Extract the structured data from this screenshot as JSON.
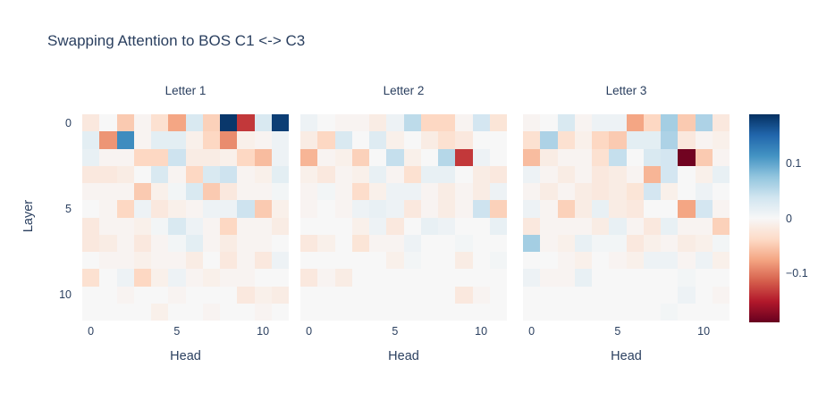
{
  "title": "Swapping Attention to BOS C1 <-> C3",
  "colors": {
    "text": "#2a3f5f",
    "background": "#ffffff",
    "max_positive": "#053061",
    "max_negative": "#67001f",
    "midpoint": "#f7f7f7"
  },
  "chart_data": {
    "type": "heatmap",
    "title": "Swapping Attention to BOS C1 <-> C3",
    "xlabel": "Head",
    "ylabel": "Layer",
    "x": [
      0,
      1,
      2,
      3,
      4,
      5,
      6,
      7,
      8,
      9,
      10,
      11
    ],
    "y": [
      0,
      1,
      2,
      3,
      4,
      5,
      6,
      7,
      8,
      9,
      10,
      11
    ],
    "xticks": [
      0,
      5,
      10
    ],
    "yticks": [
      0,
      5,
      10
    ],
    "zmin": -0.19,
    "zmax": 0.19,
    "colorscale_name": "RdBu",
    "colorscale": [
      "#67001f",
      "#b2182b",
      "#d6604d",
      "#f4a582",
      "#fddbc7",
      "#f7f7f7",
      "#d1e5f0",
      "#92c5de",
      "#4393c3",
      "#2166ac",
      "#053061"
    ],
    "colorbar": {
      "ticks": [
        {
          "label": "0.1",
          "value": 0.1
        },
        {
          "label": "0",
          "value": 0
        },
        {
          "label": "−0.1",
          "value": -0.1
        }
      ]
    },
    "subplots": [
      {
        "title": "Letter 1",
        "values": [
          [
            -0.02,
            0.0,
            -0.05,
            -0.005,
            -0.03,
            -0.075,
            0.03,
            -0.045,
            0.185,
            -0.135,
            0.03,
            0.18
          ],
          [
            0.02,
            -0.085,
            0.12,
            -0.005,
            0.02,
            0.02,
            -0.01,
            -0.04,
            -0.09,
            -0.01,
            -0.005,
            0.01
          ],
          [
            0.015,
            -0.005,
            -0.005,
            -0.04,
            -0.04,
            0.04,
            -0.015,
            -0.015,
            -0.01,
            -0.04,
            -0.06,
            0.01
          ],
          [
            -0.02,
            -0.02,
            -0.015,
            0.0,
            0.03,
            -0.005,
            -0.04,
            0.03,
            0.04,
            -0.005,
            -0.01,
            0.02
          ],
          [
            -0.005,
            -0.005,
            -0.005,
            -0.05,
            -0.01,
            0.005,
            0.03,
            -0.05,
            -0.02,
            -0.005,
            -0.005,
            0.005
          ],
          [
            0.0,
            -0.005,
            -0.04,
            0.01,
            -0.02,
            -0.01,
            -0.005,
            0.01,
            0.01,
            0.04,
            -0.05,
            -0.01
          ],
          [
            -0.02,
            -0.005,
            -0.005,
            -0.01,
            0.005,
            0.03,
            0.01,
            -0.005,
            -0.04,
            -0.005,
            -0.005,
            -0.015
          ],
          [
            -0.02,
            -0.015,
            -0.005,
            -0.02,
            -0.005,
            0.005,
            0.02,
            -0.005,
            -0.015,
            -0.005,
            -0.005,
            0.0
          ],
          [
            0.0,
            -0.005,
            -0.005,
            -0.01,
            -0.005,
            -0.005,
            -0.015,
            0.0,
            -0.02,
            -0.005,
            -0.02,
            0.01
          ],
          [
            -0.03,
            0.0,
            0.01,
            -0.04,
            -0.01,
            0.01,
            -0.005,
            -0.01,
            -0.005,
            -0.005,
            0.0,
            0.0
          ],
          [
            0.0,
            0.0,
            -0.005,
            0.0,
            0.0,
            -0.005,
            0.0,
            0.0,
            0.0,
            -0.02,
            -0.01,
            -0.015
          ],
          [
            0.0,
            0.0,
            0.0,
            0.0,
            -0.01,
            0.0,
            0.0,
            -0.005,
            0.0,
            0.0,
            -0.005,
            0.0
          ]
        ]
      },
      {
        "title": "Letter 2",
        "values": [
          [
            0.01,
            0.0,
            -0.005,
            -0.005,
            -0.015,
            0.01,
            0.05,
            -0.04,
            -0.04,
            -0.005,
            0.035,
            -0.025
          ],
          [
            -0.015,
            -0.04,
            0.03,
            0.0,
            0.025,
            -0.01,
            0.0,
            -0.015,
            -0.03,
            -0.02,
            0.0,
            0.0
          ],
          [
            -0.065,
            -0.005,
            -0.01,
            -0.045,
            0.0,
            0.045,
            -0.01,
            0.0,
            0.055,
            -0.135,
            0.01,
            0.0
          ],
          [
            -0.01,
            -0.02,
            -0.005,
            -0.01,
            0.015,
            -0.005,
            -0.03,
            0.015,
            0.015,
            0.0,
            -0.015,
            -0.02
          ],
          [
            -0.005,
            0.005,
            -0.005,
            -0.035,
            -0.01,
            0.01,
            0.01,
            -0.005,
            -0.015,
            -0.005,
            -0.015,
            0.01
          ],
          [
            -0.005,
            0.0,
            -0.005,
            0.01,
            0.015,
            0.01,
            -0.02,
            -0.005,
            -0.015,
            -0.005,
            0.04,
            -0.045
          ],
          [
            0.0,
            0.0,
            0.0,
            -0.01,
            0.01,
            -0.02,
            0.0,
            0.015,
            0.01,
            0.0,
            0.0,
            0.015
          ],
          [
            -0.02,
            -0.01,
            0.0,
            -0.025,
            -0.005,
            -0.005,
            0.01,
            0.0,
            0.0,
            0.005,
            0.0,
            0.0
          ],
          [
            0.0,
            0.0,
            0.0,
            0.0,
            0.0,
            -0.01,
            0.005,
            0.0,
            0.0,
            -0.015,
            0.0,
            0.005
          ],
          [
            -0.02,
            -0.005,
            -0.015,
            0.0,
            0.0,
            0.0,
            0.0,
            0.0,
            0.0,
            0.0,
            0.0,
            0.0
          ],
          [
            0.0,
            0.0,
            0.0,
            0.0,
            0.0,
            0.0,
            0.0,
            0.0,
            0.0,
            -0.02,
            -0.005,
            0.0
          ],
          [
            0.0,
            0.0,
            0.0,
            0.0,
            0.0,
            0.0,
            0.0,
            0.0,
            0.0,
            0.0,
            0.0,
            0.0
          ]
        ]
      },
      {
        "title": "Letter 3",
        "values": [
          [
            -0.005,
            0.0,
            0.03,
            -0.005,
            0.01,
            0.01,
            -0.075,
            -0.04,
            0.065,
            -0.05,
            0.06,
            -0.02
          ],
          [
            -0.03,
            0.06,
            -0.03,
            -0.01,
            -0.04,
            -0.05,
            0.02,
            0.02,
            0.06,
            -0.02,
            -0.005,
            -0.01
          ],
          [
            -0.06,
            -0.015,
            -0.005,
            -0.005,
            -0.03,
            0.045,
            0.0,
            0.03,
            0.035,
            -0.185,
            -0.05,
            -0.005
          ],
          [
            0.01,
            -0.005,
            -0.015,
            -0.005,
            -0.02,
            -0.015,
            -0.005,
            -0.065,
            0.035,
            0.0,
            -0.01,
            0.015
          ],
          [
            -0.005,
            -0.015,
            -0.005,
            -0.015,
            -0.02,
            -0.015,
            -0.025,
            0.035,
            -0.01,
            0.0,
            0.01,
            0.0
          ],
          [
            0.01,
            -0.005,
            -0.045,
            -0.015,
            0.015,
            -0.015,
            -0.02,
            0.0,
            0.0,
            -0.075,
            0.035,
            -0.005
          ],
          [
            -0.02,
            -0.005,
            -0.005,
            -0.005,
            -0.015,
            0.015,
            -0.005,
            -0.02,
            0.015,
            -0.005,
            -0.005,
            -0.045
          ],
          [
            0.065,
            -0.005,
            -0.01,
            0.015,
            0.005,
            0.005,
            -0.02,
            -0.01,
            -0.005,
            -0.015,
            -0.01,
            0.005
          ],
          [
            0.0,
            0.0,
            -0.005,
            -0.01,
            0.0,
            -0.005,
            -0.01,
            0.01,
            0.01,
            -0.005,
            0.01,
            -0.01
          ],
          [
            0.01,
            -0.005,
            -0.005,
            0.015,
            0.0,
            0.0,
            0.0,
            0.0,
            0.0,
            0.005,
            0.0,
            0.0
          ],
          [
            0.0,
            0.0,
            0.0,
            0.0,
            0.0,
            0.0,
            0.0,
            0.0,
            0.0,
            0.01,
            0.0,
            -0.005
          ],
          [
            0.0,
            0.0,
            0.0,
            0.0,
            0.0,
            0.0,
            0.0,
            0.0,
            0.005,
            0.0,
            0.0,
            0.0
          ]
        ]
      }
    ]
  }
}
